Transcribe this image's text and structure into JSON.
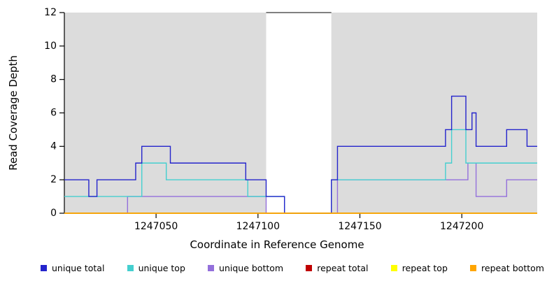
{
  "chart_data": {
    "type": "line",
    "step": true,
    "title": "",
    "xlabel": "Coordinate in Reference Genome",
    "ylabel": "Read Coverage Depth",
    "xlim": [
      1247005,
      1247237
    ],
    "ylim": [
      0,
      12
    ],
    "xticks": [
      1247050,
      1247100,
      1247150,
      1247200
    ],
    "yticks": [
      0,
      2,
      4,
      6,
      8,
      10,
      12
    ],
    "grid": false,
    "plot_background": "#ffffff",
    "shaded_color": "#DCDCDC",
    "background_regions": [
      {
        "x0": 1247005,
        "x1": 1247104
      },
      {
        "x0": 1247136,
        "x1": 1247237
      }
    ],
    "gap_region": {
      "x0": 1247104,
      "x1": 1247136,
      "top_border": true
    },
    "series": [
      {
        "name": "unique total",
        "color": "#2424CC",
        "points": [
          [
            1247005,
            2
          ],
          [
            1247017,
            1
          ],
          [
            1247021,
            2
          ],
          [
            1247040,
            3
          ],
          [
            1247043,
            4
          ],
          [
            1247057,
            3
          ],
          [
            1247094,
            2
          ],
          [
            1247104,
            1
          ],
          [
            1247113,
            0
          ],
          [
            1247136,
            2
          ],
          [
            1247139,
            4
          ],
          [
            1247192,
            5
          ],
          [
            1247195,
            7
          ],
          [
            1247202,
            5
          ],
          [
            1247205,
            6
          ],
          [
            1247207,
            4
          ],
          [
            1247222,
            5
          ],
          [
            1247232,
            4
          ]
        ]
      },
      {
        "name": "unique top",
        "color": "#45CFCF",
        "points": [
          [
            1247005,
            1
          ],
          [
            1247043,
            3
          ],
          [
            1247055,
            2
          ],
          [
            1247095,
            1
          ],
          [
            1247113,
            0
          ],
          [
            1247136,
            2
          ],
          [
            1247192,
            3
          ],
          [
            1247195,
            5
          ],
          [
            1247202,
            3
          ]
        ]
      },
      {
        "name": "unique bottom",
        "color": "#9370DB",
        "points": [
          [
            1247005,
            0
          ],
          [
            1247036,
            1
          ],
          [
            1247104,
            0
          ],
          [
            1247139,
            2
          ],
          [
            1247203,
            3
          ],
          [
            1247207,
            1
          ],
          [
            1247222,
            2
          ]
        ]
      },
      {
        "name": "repeat total",
        "color": "#C00000",
        "points": [
          [
            1247005,
            0
          ]
        ]
      },
      {
        "name": "repeat top",
        "color": "#FFFF00",
        "points": [
          [
            1247005,
            0
          ]
        ]
      },
      {
        "name": "repeat bottom",
        "color": "#FFA500",
        "points": [
          [
            1247005,
            0
          ]
        ]
      }
    ],
    "draw_order": [
      2,
      1,
      0,
      3,
      4,
      5
    ],
    "legend_position": "bottom"
  }
}
